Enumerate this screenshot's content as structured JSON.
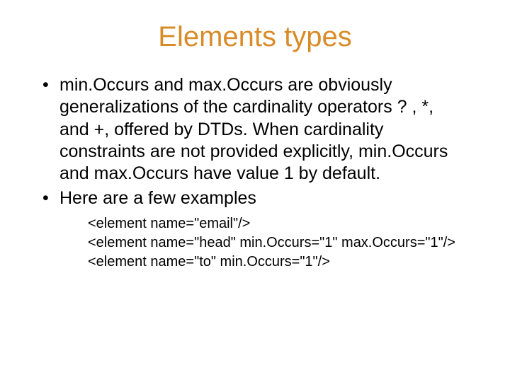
{
  "title": {
    "text": "Elements types",
    "color": "#d98b28"
  },
  "bullets": [
    "min.Occurs and max.Occurs are obviously generalizations of the cardinality operators ? , *, and +, offered by DTDs. When cardinality constraints are not provided explicitly, min.Occurs and max.Occurs have value 1 by default.",
    "Here are a few examples"
  ],
  "examples": [
    "<element name=\"email\"/>",
    "<element name=\"head\" min.Occurs=\"1\" max.Occurs=\"1\"/>",
    "<element name=\"to\" min.Occurs=\"1\"/>"
  ],
  "colors": {
    "text": "#000000",
    "background": "#ffffff"
  }
}
